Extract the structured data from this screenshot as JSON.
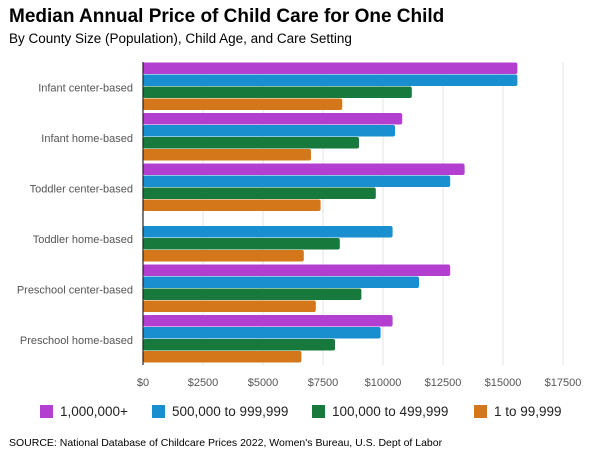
{
  "chart_data": {
    "type": "bar",
    "orientation": "horizontal",
    "title": "Median Annual Price of Child Care for One Child",
    "subtitle": "By County Size (Population), Child Age, and Care Setting",
    "source": "SOURCE: National Database of Childcare Prices 2022, Women's Bureau, U.S. Dept of Labor",
    "categories": [
      "Infant center-based",
      "Infant home-based",
      "Toddler center-based",
      "Toddler home-based",
      "Preschool center-based",
      "Preschool home-based"
    ],
    "series": [
      {
        "name": "1,000,000+",
        "color": "#b33fd1",
        "values": [
          15600,
          10800,
          13400,
          null,
          12800,
          10400
        ]
      },
      {
        "name": "500,000 to 999,999",
        "color": "#1a8fd0",
        "values": [
          15600,
          10500,
          12800,
          10400,
          11500,
          9900
        ]
      },
      {
        "name": "100,000 to 499,999",
        "color": "#177a3c",
        "values": [
          11200,
          9000,
          9700,
          8200,
          9100,
          8000
        ]
      },
      {
        "name": "1 to 99,999",
        "color": "#d4771a",
        "values": [
          8300,
          7000,
          7400,
          6700,
          7200,
          6600
        ]
      }
    ],
    "x_ticks": [
      "$0",
      "$2500",
      "$5000",
      "$7500",
      "$10000",
      "$12500",
      "$15000",
      "$17500"
    ],
    "xlim": [
      0,
      17500
    ],
    "grid": true,
    "legend_position": "bottom"
  }
}
